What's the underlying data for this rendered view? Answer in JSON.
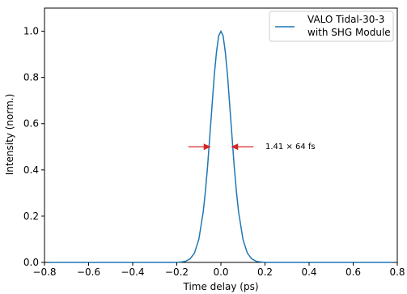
{
  "chart_data": {
    "type": "line",
    "title": "",
    "xlabel": "Time delay (ps)",
    "ylabel": "Intensity (norm.)",
    "xlim": [
      -0.8,
      0.8
    ],
    "ylim": [
      0.0,
      1.1
    ],
    "xticks": [
      -0.8,
      -0.6,
      -0.4,
      -0.2,
      0.0,
      0.2,
      0.4,
      0.6,
      0.8
    ],
    "xtick_labels": [
      "−0.8",
      "−0.6",
      "−0.4",
      "−0.2",
      "0.0",
      "0.2",
      "0.4",
      "0.6",
      "0.8"
    ],
    "yticks": [
      0.0,
      0.2,
      0.4,
      0.6,
      0.8,
      1.0
    ],
    "ytick_labels": [
      "0.0",
      "0.2",
      "0.4",
      "0.6",
      "0.8",
      "1.0"
    ],
    "grid": false,
    "legend_position": "top-right",
    "series": [
      {
        "name_line1": "VALO Tidal-30-3",
        "name_line2": "with SHG Module",
        "color": "#1f77b4",
        "x": [
          -0.78,
          -0.2,
          -0.18,
          -0.16,
          -0.14,
          -0.12,
          -0.1,
          -0.08,
          -0.07,
          -0.06,
          -0.05,
          -0.04,
          -0.03,
          -0.02,
          -0.01,
          0.0,
          0.01,
          0.02,
          0.03,
          0.04,
          0.05,
          0.06,
          0.07,
          0.08,
          0.1,
          0.12,
          0.14,
          0.16,
          0.18,
          0.2,
          0.78
        ],
        "y": [
          0.0,
          0.0,
          0.002,
          0.005,
          0.015,
          0.04,
          0.1,
          0.22,
          0.31,
          0.42,
          0.55,
          0.68,
          0.81,
          0.91,
          0.98,
          1.0,
          0.98,
          0.91,
          0.81,
          0.68,
          0.55,
          0.42,
          0.31,
          0.22,
          0.1,
          0.04,
          0.015,
          0.005,
          0.002,
          0.0,
          0.0
        ]
      }
    ],
    "annotation": {
      "text": "1.41 × 64 fs",
      "color": "#d62728",
      "level": 0.5,
      "left_x": -0.045,
      "right_x": 0.045
    }
  }
}
